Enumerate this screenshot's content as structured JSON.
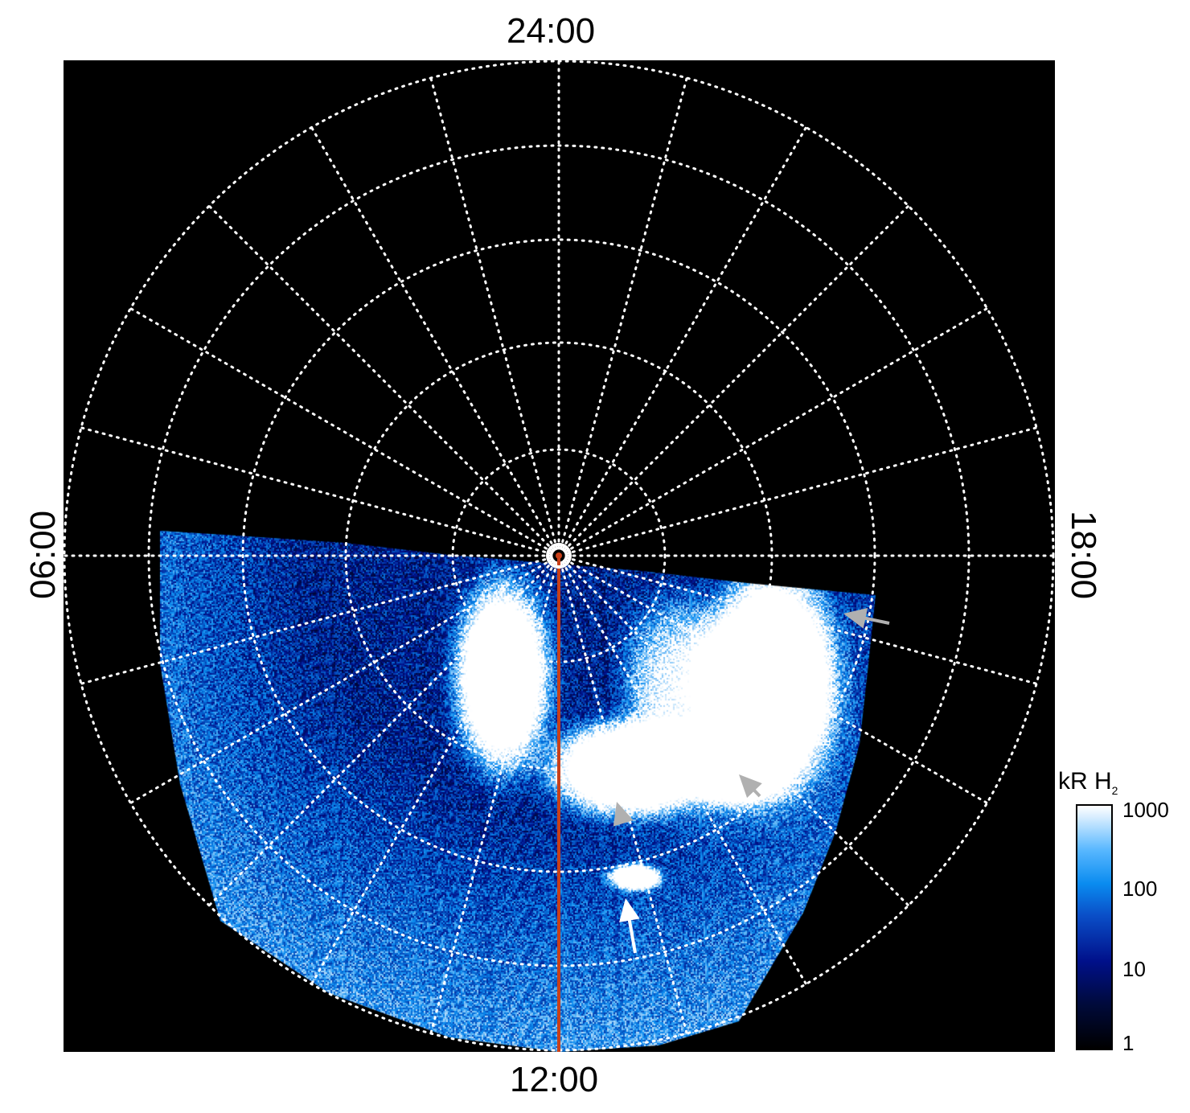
{
  "chart_data": {
    "type": "heatmap",
    "projection": "polar",
    "local_time_labels": {
      "top": "24:00",
      "bottom": "12:00",
      "left": "06:00",
      "right": "18:00"
    },
    "grid": true,
    "grid_style": "dotted white",
    "colorbar": {
      "label": "kR H",
      "label_subscript": "2",
      "scale": "log",
      "range": [
        1,
        1000
      ],
      "ticks": [
        "1000",
        "100",
        "10",
        "1"
      ],
      "colormap": [
        "#000000",
        "#00108a",
        "#0a8cf0",
        "#ffffff"
      ]
    },
    "meridian_line_color": "#c8401a",
    "annotation_arrow_colors": [
      "#ffffff",
      "#b0b0b0"
    ]
  }
}
